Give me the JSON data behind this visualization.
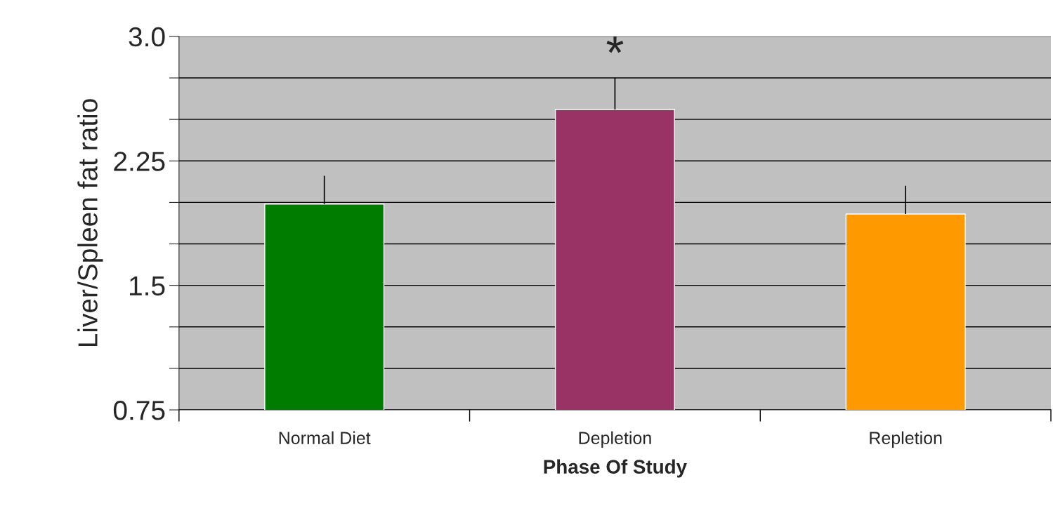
{
  "chart_data": {
    "type": "bar",
    "xlabel": "Phase Of Study",
    "ylabel": "Liver/Spleen fat ratio",
    "categories": [
      "Normal Diet",
      "Depletion",
      "Repletion"
    ],
    "values": [
      1.99,
      2.56,
      1.93
    ],
    "colors": [
      "#007d00",
      "#993366",
      "#ff9900"
    ],
    "errors": [
      [
        1.99,
        2.16
      ],
      [
        2.56,
        2.75
      ],
      [
        1.93,
        2.1
      ]
    ],
    "ylim": [
      0.75,
      3.0
    ],
    "yticks": [
      0.75,
      {
        "value": 1.0,
        "label": null
      },
      {
        "value": 1.25,
        "label": null
      },
      1.5,
      {
        "value": 1.75,
        "label": null
      },
      {
        "value": 2.0,
        "label": null
      },
      2.25,
      {
        "value": 2.5,
        "label": null
      },
      {
        "value": 2.75,
        "label": null
      },
      {
        "value": 3.0,
        "label": "3.0"
      }
    ],
    "grid": "y",
    "annotations": [
      "*"
    ]
  }
}
